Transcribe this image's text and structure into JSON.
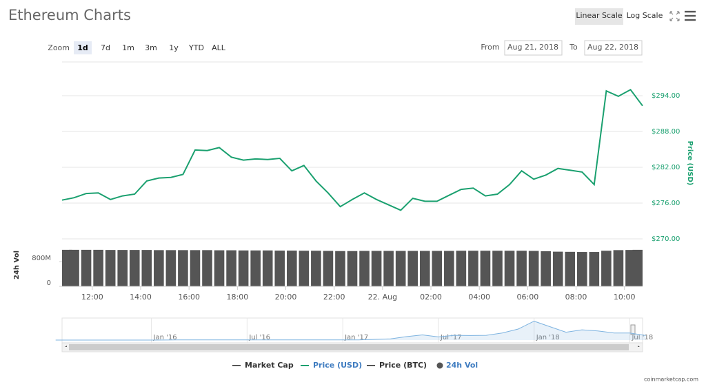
{
  "header": {
    "title": "Ethereum Charts",
    "scale_buttons": [
      "Linear Scale",
      "Log Scale"
    ],
    "active_scale": 0
  },
  "zoom": {
    "label": "Zoom",
    "options": [
      "1d",
      "7d",
      "1m",
      "3m",
      "1y",
      "YTD",
      "ALL"
    ],
    "active": 0
  },
  "range": {
    "from_label": "From",
    "from": "Aug 21, 2018",
    "to_label": "To",
    "to": "Aug 22, 2018"
  },
  "chart_data": [
    {
      "type": "line",
      "y_label": "Price (USD)",
      "x": [
        10.75,
        11.25,
        11.75,
        12.25,
        12.75,
        13.25,
        13.75,
        14.25,
        14.75,
        15.25,
        15.75,
        16.25,
        16.75,
        17.25,
        17.75,
        18.25,
        18.75,
        19.25,
        19.75,
        20.25,
        20.75,
        21.25,
        21.75,
        22.25,
        22.75,
        23.25,
        23.75,
        24.25,
        24.75,
        25.25,
        25.75,
        26.25,
        26.75,
        27.25,
        27.75,
        28.25,
        28.75,
        29.25,
        29.75,
        30.25,
        30.75,
        31.25,
        31.75,
        32.25,
        32.75,
        33.25,
        33.75,
        34.25,
        34.75
      ],
      "series": [
        {
          "name": "Price (USD)",
          "color": "#1aa06f",
          "values": [
            276.5,
            276.9,
            277.6,
            277.7,
            276.6,
            277.2,
            277.5,
            279.7,
            280.2,
            280.3,
            280.8,
            284.9,
            284.8,
            285.3,
            283.7,
            283.2,
            283.4,
            283.3,
            283.5,
            281.4,
            282.3,
            279.7,
            277.7,
            275.4,
            276.6,
            277.7,
            276.6,
            275.7,
            274.8,
            276.8,
            276.3,
            276.3,
            277.3,
            278.3,
            278.5,
            277.2,
            277.5,
            279.1,
            281.4,
            280.0,
            280.7,
            281.8,
            281.5,
            281.2,
            279.1,
            294.8,
            293.9,
            295.0,
            292.3
          ]
        }
      ],
      "xlim": [
        10.75,
        34.75
      ],
      "ylim": [
        270,
        300
      ],
      "yticks": [
        {
          "value": 270,
          "label": "$270.00"
        },
        {
          "value": 276,
          "label": "$276.00"
        },
        {
          "value": 282,
          "label": "$282.00"
        },
        {
          "value": 288,
          "label": "$288.00"
        },
        {
          "value": 294,
          "label": "$294.00"
        }
      ],
      "grid": true
    },
    {
      "type": "bar",
      "y_label": "24h Vol",
      "x": [
        10.75,
        11.25,
        11.75,
        12.25,
        12.75,
        13.25,
        13.75,
        14.25,
        14.75,
        15.25,
        15.75,
        16.25,
        16.75,
        17.25,
        17.75,
        18.25,
        18.75,
        19.25,
        19.75,
        20.25,
        20.75,
        21.25,
        21.75,
        22.25,
        22.75,
        23.25,
        23.75,
        24.25,
        24.75,
        25.25,
        25.75,
        26.25,
        26.75,
        27.25,
        27.75,
        28.25,
        28.75,
        29.25,
        29.75,
        30.25,
        30.75,
        31.25,
        31.75,
        32.25,
        32.75,
        33.25,
        33.75,
        34.25,
        34.75
      ],
      "series": [
        {
          "name": "24h Vol",
          "color": "#555555",
          "values": [
            1180000000,
            1180000000,
            1180000000,
            1180000000,
            1175000000,
            1175000000,
            1175000000,
            1175000000,
            1170000000,
            1170000000,
            1170000000,
            1170000000,
            1170000000,
            1165000000,
            1165000000,
            1160000000,
            1160000000,
            1160000000,
            1155000000,
            1155000000,
            1150000000,
            1150000000,
            1145000000,
            1140000000,
            1140000000,
            1145000000,
            1145000000,
            1145000000,
            1145000000,
            1145000000,
            1145000000,
            1145000000,
            1145000000,
            1150000000,
            1150000000,
            1150000000,
            1150000000,
            1150000000,
            1150000000,
            1145000000,
            1135000000,
            1120000000,
            1115000000,
            1110000000,
            1110000000,
            1150000000,
            1170000000,
            1175000000,
            1180000000
          ]
        }
      ],
      "xlim": [
        10.75,
        34.75
      ],
      "ylim": [
        0,
        1600000000
      ],
      "yticks": [
        0,
        {
          "value": 800000000,
          "label": "800M"
        }
      ],
      "xticks": [
        {
          "value": 12,
          "label": "12:00"
        },
        {
          "value": 14,
          "label": "14:00"
        },
        {
          "value": 16,
          "label": "16:00"
        },
        {
          "value": 18,
          "label": "18:00"
        },
        {
          "value": 20,
          "label": "20:00"
        },
        {
          "value": 22,
          "label": "22:00"
        },
        {
          "value": 24,
          "label": "22. Aug"
        },
        {
          "value": 26,
          "label": "02:00"
        },
        {
          "value": 28,
          "label": "04:00"
        },
        {
          "value": 30,
          "label": "06:00"
        },
        {
          "value": 32,
          "label": "08:00"
        },
        {
          "value": 34,
          "label": "10:00"
        }
      ]
    },
    {
      "type": "area",
      "x": [
        -6,
        -5,
        -4,
        -3,
        -2,
        -1,
        0,
        1,
        2,
        3,
        4,
        5,
        6,
        7,
        8,
        9,
        10,
        11,
        12,
        13,
        14,
        15,
        16,
        17,
        18,
        19,
        20,
        21,
        22,
        23,
        24,
        25,
        26,
        27,
        28,
        29,
        30,
        31
      ],
      "series": [
        {
          "name": "Price (USD)",
          "color": "#7db3e0",
          "values": [
            1,
            1,
            1,
            1,
            1,
            1,
            1,
            5,
            11,
            8,
            10,
            14,
            12,
            11,
            12,
            12,
            11,
            8,
            10,
            13,
            45,
            80,
            220,
            330,
            200,
            300,
            290,
            300,
            450,
            700,
            1200,
            850,
            500,
            650,
            580,
            450,
            450,
            290
          ]
        }
      ],
      "xlim": [
        -5.6,
        30.8
      ],
      "ylim": [
        0,
        1400
      ],
      "xticks": [
        {
          "value": 0,
          "label": "Jan '16"
        },
        {
          "value": 6,
          "label": "Jul '16"
        },
        {
          "value": 12,
          "label": "Jan '17"
        },
        {
          "value": 18,
          "label": "Jul '17"
        },
        {
          "value": 24,
          "label": "Jan '18"
        },
        {
          "value": 30,
          "label": "Jul '18"
        }
      ]
    }
  ],
  "legend": [
    {
      "name": "Market Cap",
      "color": "#555555",
      "marker": "line",
      "active": false
    },
    {
      "name": "Price (USD)",
      "color": "#1aa06f",
      "marker": "line",
      "active": true
    },
    {
      "name": "Price (BTC)",
      "color": "#555555",
      "marker": "line",
      "active": false
    },
    {
      "name": "24h Vol",
      "color": "#555555",
      "marker": "circle",
      "active": true
    }
  ],
  "credit": "coinmarketcap.com"
}
